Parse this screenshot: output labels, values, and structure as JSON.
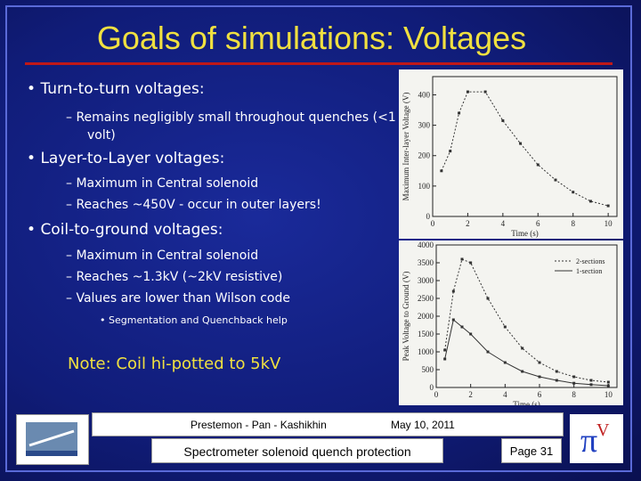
{
  "title": "Goals of simulations: Voltages",
  "bullets": [
    {
      "text": "Turn-to-turn voltages:",
      "sub": [
        "Remains negligibly small throughout quenches (<1 volt)"
      ]
    },
    {
      "text": "Layer-to-Layer voltages:",
      "sub": [
        "Maximum in Central solenoid",
        "Reaches ~450V - occur in outer layers!"
      ]
    },
    {
      "text": "Coil-to-ground voltages:",
      "sub": [
        "Maximum in Central solenoid",
        "Reaches ~1.3kV (~2kV resistive)",
        "Values are lower than Wilson code"
      ],
      "subsub": [
        "Segmentation and Quenchback help"
      ]
    }
  ],
  "note": "Note: Coil hi-potted to 5kV",
  "footer": {
    "authors": "Prestemon - Pan - Kashikhin",
    "date": "May 10, 2011",
    "talk": "Spectrometer solenoid quench protection",
    "page": "Page 31"
  },
  "chart_data": [
    {
      "type": "line",
      "x_label": "Time (s)",
      "y_label": "Maximum Inter-layer Voltage (V)",
      "x": [
        0.5,
        1,
        1.5,
        2,
        3,
        4,
        5,
        6,
        7,
        8,
        9,
        10
      ],
      "series": [
        {
          "color": "#333333",
          "values": [
            150,
            215,
            340,
            410,
            410,
            315,
            240,
            170,
            120,
            80,
            50,
            35
          ]
        }
      ],
      "xlim": [
        0,
        10.5
      ],
      "ylim": [
        0,
        460
      ],
      "xticks": [
        0,
        2,
        4,
        6,
        8,
        10
      ],
      "yticks": [
        0,
        100,
        200,
        300,
        400
      ]
    },
    {
      "type": "line",
      "x_label": "Time (s)",
      "y_label": "Peak Voltage to Ground (V)",
      "x": [
        0.5,
        1,
        1.5,
        2,
        3,
        4,
        5,
        6,
        7,
        8,
        9,
        10
      ],
      "series": [
        {
          "name": "2-sections",
          "color": "#333333",
          "dash": true,
          "values": [
            1050,
            2700,
            3600,
            3500,
            2500,
            1700,
            1100,
            700,
            450,
            300,
            200,
            150
          ]
        },
        {
          "name": "1-section",
          "color": "#333333",
          "dash": false,
          "values": [
            800,
            1900,
            1700,
            1500,
            1000,
            700,
            450,
            300,
            200,
            120,
            80,
            50
          ]
        }
      ],
      "xlim": [
        0,
        10.5
      ],
      "ylim": [
        0,
        4000
      ],
      "xticks": [
        0,
        2,
        4,
        6,
        8,
        10
      ],
      "yticks": [
        0,
        500,
        1000,
        1500,
        2000,
        2500,
        3000,
        3500,
        4000
      ]
    }
  ]
}
